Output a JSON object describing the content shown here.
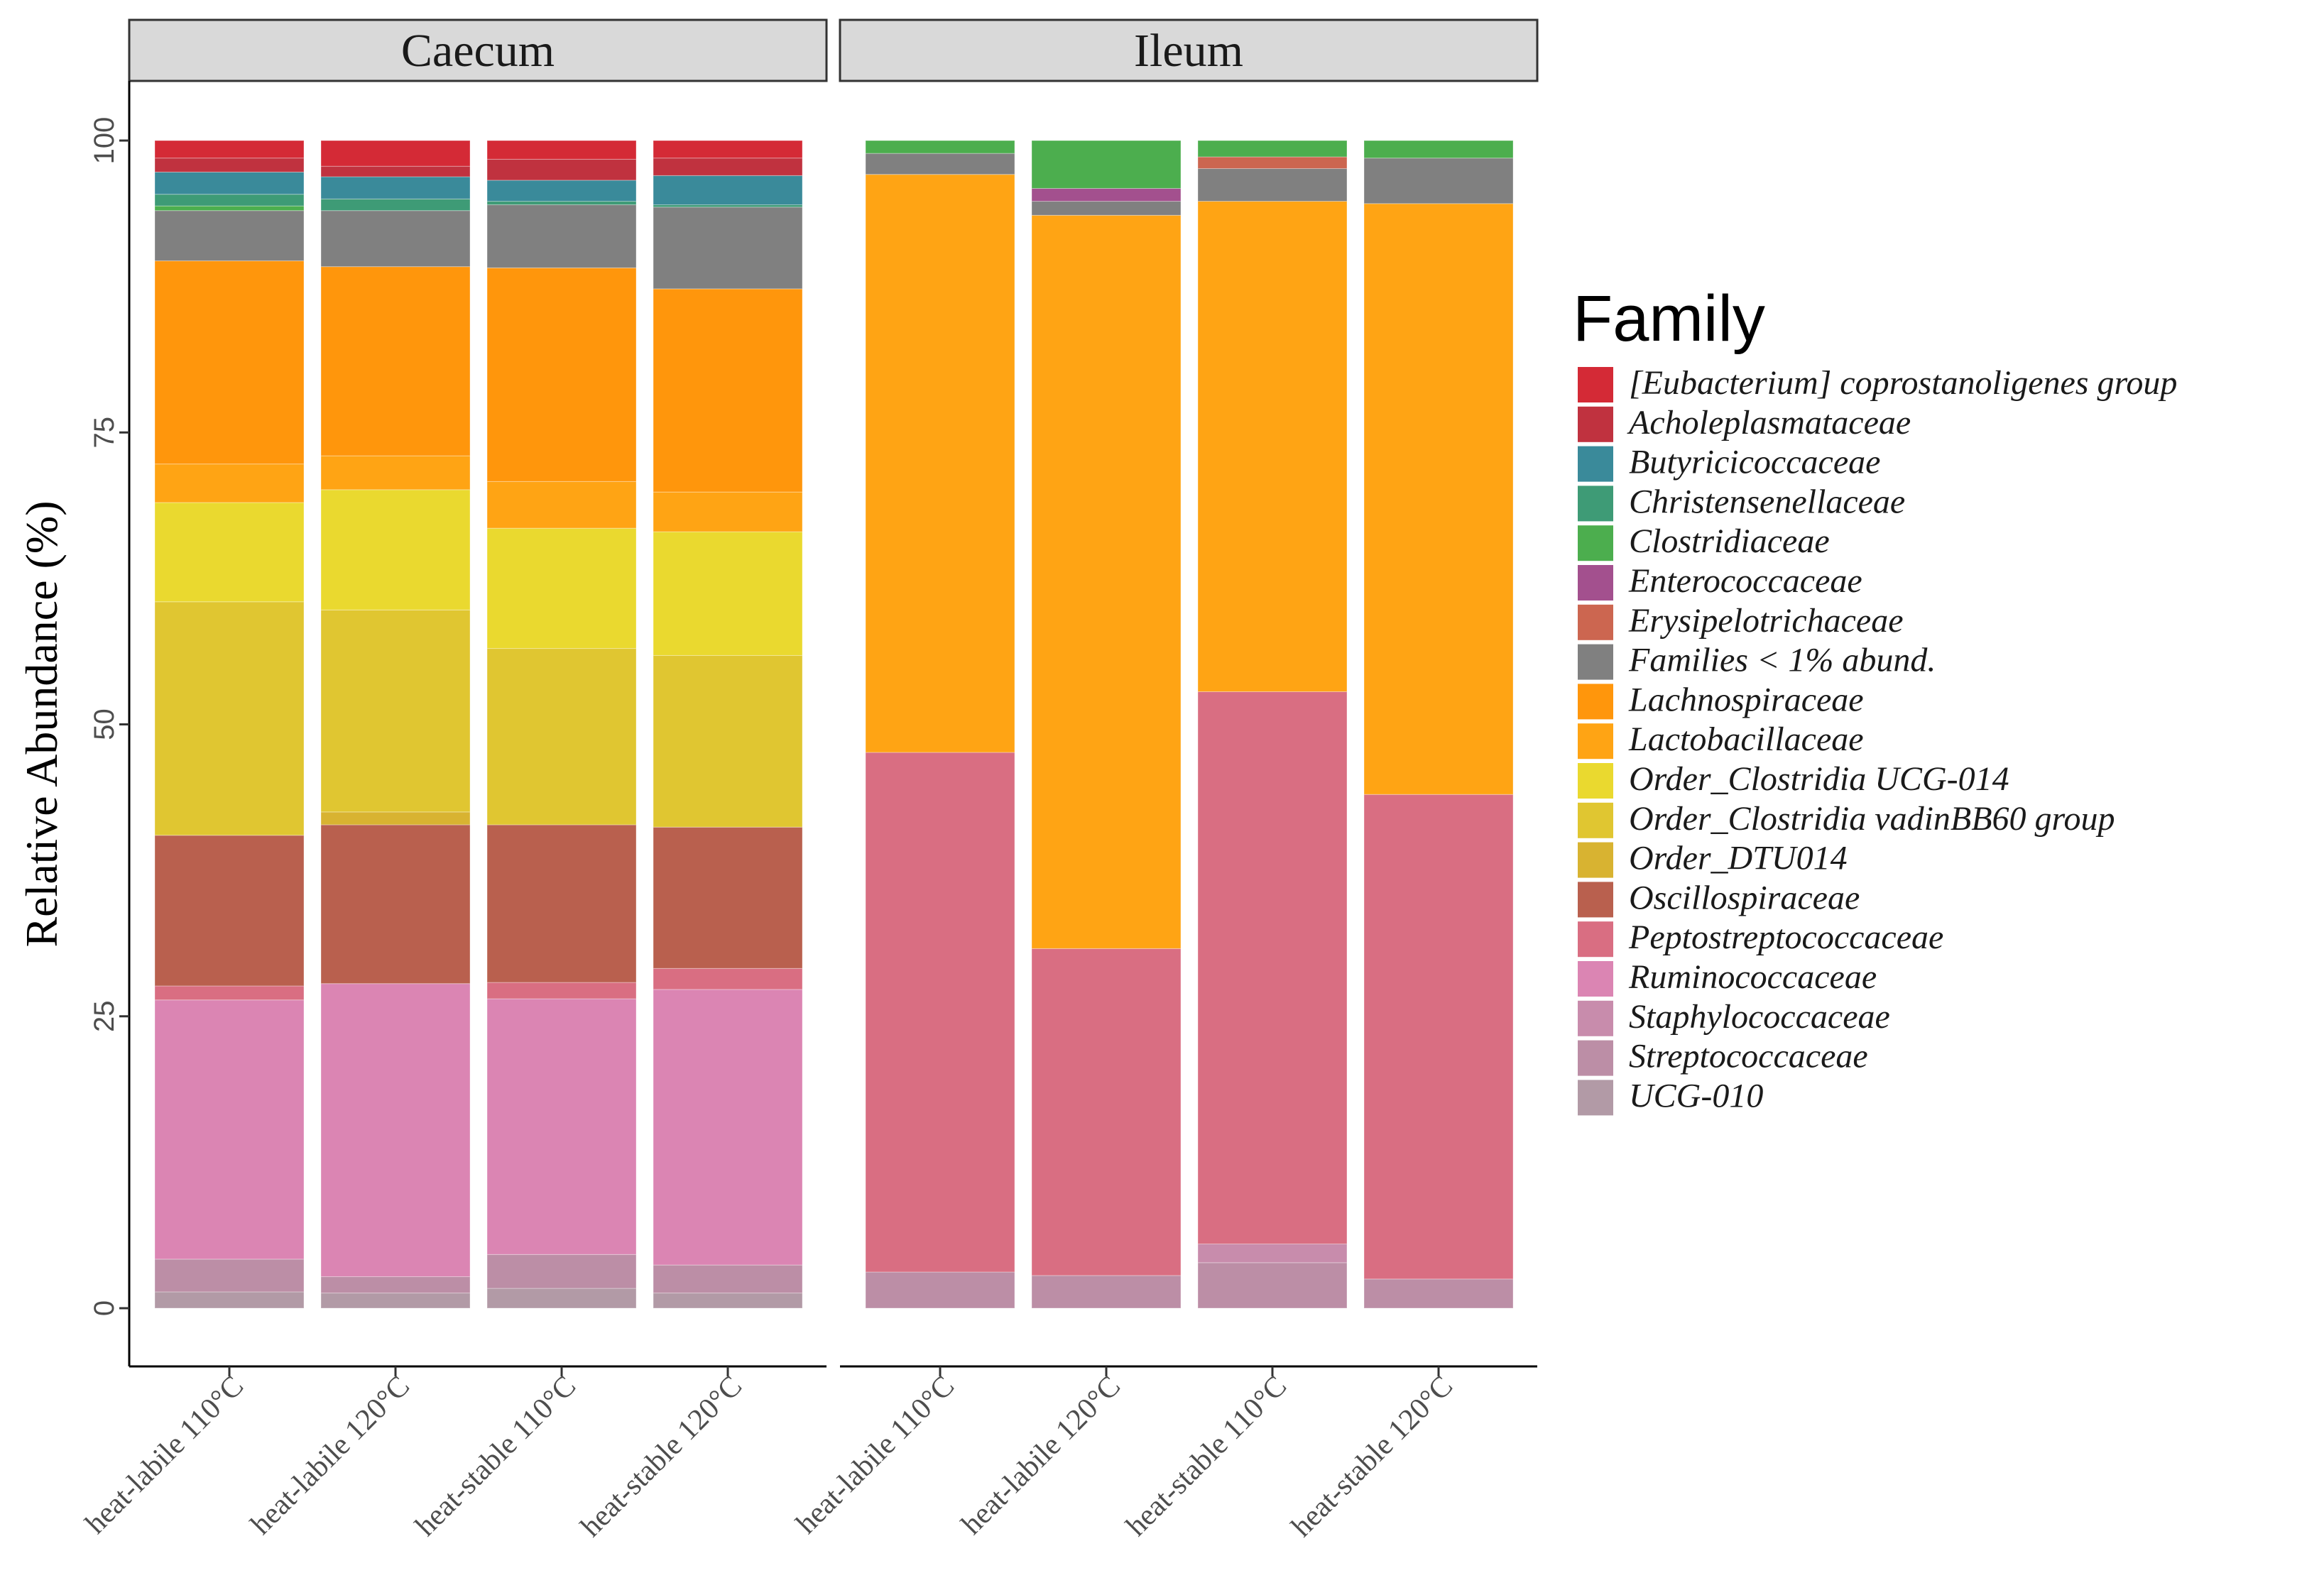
{
  "chart_data": {
    "type": "bar",
    "stacked": true,
    "ylabel": "Relative Abundance (%)",
    "ylim": [
      0,
      100
    ],
    "yticks": [
      0,
      25,
      50,
      75,
      100
    ],
    "legend_title": "Family",
    "legend_position": "right",
    "grid": false,
    "facets": [
      "Caecum",
      "Ileum"
    ],
    "categories": [
      "heat-labile 110°C",
      "heat-labile 120°C",
      "heat-stable 110°C",
      "heat-stable 120°C"
    ],
    "families": [
      {
        "name": "[Eubacterium] coprostanoligenes group",
        "color": "#D42A36"
      },
      {
        "name": "Acholeplasmataceae",
        "color": "#C0323F"
      },
      {
        "name": "Butyricicoccaceae",
        "color": "#3A8A9A"
      },
      {
        "name": "Christensenellaceae",
        "color": "#3E9B76"
      },
      {
        "name": "Clostridiaceae",
        "color": "#4CAE4E"
      },
      {
        "name": "Enterococcaceae",
        "color": "#A3508E"
      },
      {
        "name": "Erysipelotrichaceae",
        "color": "#CC6650"
      },
      {
        "name": "Families < 1% abund.",
        "color": "#808080"
      },
      {
        "name": "Lachnospiraceae",
        "color": "#FF960C"
      },
      {
        "name": "Lactobacillaceae",
        "color": "#FFA414"
      },
      {
        "name": "Order_Clostridia UCG-014",
        "color": "#EAD92F"
      },
      {
        "name": "Order_Clostridia vadinBB60 group",
        "color": "#E0C631"
      },
      {
        "name": "Order_DTU014",
        "color": "#D8B331"
      },
      {
        "name": "Oscillospiraceae",
        "color": "#B9604E"
      },
      {
        "name": "Peptostreptococcaceae",
        "color": "#D96E82"
      },
      {
        "name": "Ruminococcaceae",
        "color": "#DB85B3"
      },
      {
        "name": "Staphylococcaceae",
        "color": "#C88CAC"
      },
      {
        "name": "Streptococcaceae",
        "color": "#BC8EA6"
      },
      {
        "name": "UCG-010",
        "color": "#B29AA6"
      }
    ],
    "panels": [
      {
        "facet": "Caecum",
        "bars": [
          {
            "category": "heat-labile 110°C",
            "segments": [
              {
                "family": "UCG-010",
                "value": 1.4
              },
              {
                "family": "Streptococcaceae",
                "value": 2.8
              },
              {
                "family": "Ruminococcaceae",
                "value": 22.2
              },
              {
                "family": "Peptostreptococcaceae",
                "value": 1.2
              },
              {
                "family": "Oscillospiraceae",
                "value": 12.9
              },
              {
                "family": "Order_Clostridia vadinBB60 group",
                "value": 20.0
              },
              {
                "family": "Order_Clostridia UCG-014",
                "value": 8.5
              },
              {
                "family": "Lactobacillaceae",
                "value": 3.3
              },
              {
                "family": "Lachnospiraceae",
                "value": 17.4
              },
              {
                "family": "Families < 1% abund.",
                "value": 4.3
              },
              {
                "family": "Clostridiaceae",
                "value": 0.4
              },
              {
                "family": "Christensenellaceae",
                "value": 1.0
              },
              {
                "family": "Butyricicoccaceae",
                "value": 1.9
              },
              {
                "family": "Acholeplasmataceae",
                "value": 1.2
              },
              {
                "family": "[Eubacterium] coprostanoligenes group",
                "value": 1.5
              }
            ]
          },
          {
            "category": "heat-labile 120°C",
            "segments": [
              {
                "family": "UCG-010",
                "value": 1.3
              },
              {
                "family": "Streptococcaceae",
                "value": 1.4
              },
              {
                "family": "Ruminococcaceae",
                "value": 25.1
              },
              {
                "family": "Oscillospiraceae",
                "value": 13.6
              },
              {
                "family": "Order_DTU014",
                "value": 1.1
              },
              {
                "family": "Order_Clostridia vadinBB60 group",
                "value": 17.3
              },
              {
                "family": "Order_Clostridia UCG-014",
                "value": 10.3
              },
              {
                "family": "Lactobacillaceae",
                "value": 2.9
              },
              {
                "family": "Lachnospiraceae",
                "value": 16.2
              },
              {
                "family": "Families < 1% abund.",
                "value": 4.8
              },
              {
                "family": "Christensenellaceae",
                "value": 1.0
              },
              {
                "family": "Butyricicoccaceae",
                "value": 1.9
              },
              {
                "family": "Acholeplasmataceae",
                "value": 0.9
              },
              {
                "family": "[Eubacterium] coprostanoligenes group",
                "value": 2.2
              }
            ]
          },
          {
            "category": "heat-stable 110°C",
            "segments": [
              {
                "family": "UCG-010",
                "value": 1.7
              },
              {
                "family": "Streptococcaceae",
                "value": 2.9
              },
              {
                "family": "Ruminococcaceae",
                "value": 21.9
              },
              {
                "family": "Peptostreptococcaceae",
                "value": 1.4
              },
              {
                "family": "Oscillospiraceae",
                "value": 13.5
              },
              {
                "family": "Order_Clostridia vadinBB60 group",
                "value": 15.1
              },
              {
                "family": "Order_Clostridia UCG-014",
                "value": 10.3
              },
              {
                "family": "Lactobacillaceae",
                "value": 4.0
              },
              {
                "family": "Lachnospiraceae",
                "value": 18.3
              },
              {
                "family": "Families < 1% abund.",
                "value": 5.4
              },
              {
                "family": "Christensenellaceae",
                "value": 0.3
              },
              {
                "family": "Butyricicoccaceae",
                "value": 1.8
              },
              {
                "family": "Acholeplasmataceae",
                "value": 1.8
              },
              {
                "family": "[Eubacterium] coprostanoligenes group",
                "value": 1.6
              }
            ]
          },
          {
            "category": "heat-stable 120°C",
            "segments": [
              {
                "family": "UCG-010",
                "value": 1.3
              },
              {
                "family": "Streptococcaceae",
                "value": 2.4
              },
              {
                "family": "Ruminococcaceae",
                "value": 23.6
              },
              {
                "family": "Peptostreptococcaceae",
                "value": 1.8
              },
              {
                "family": "Oscillospiraceae",
                "value": 12.1
              },
              {
                "family": "Order_Clostridia vadinBB60 group",
                "value": 14.7
              },
              {
                "family": "Order_Clostridia UCG-014",
                "value": 10.6
              },
              {
                "family": "Lactobacillaceae",
                "value": 3.4
              },
              {
                "family": "Lachnospiraceae",
                "value": 17.4
              },
              {
                "family": "Families < 1% abund.",
                "value": 7.0
              },
              {
                "family": "Christensenellaceae",
                "value": 0.2
              },
              {
                "family": "Butyricicoccaceae",
                "value": 2.5
              },
              {
                "family": "Acholeplasmataceae",
                "value": 1.5
              },
              {
                "family": "[Eubacterium] coprostanoligenes group",
                "value": 1.5
              }
            ]
          }
        ]
      },
      {
        "facet": "Ileum",
        "bars": [
          {
            "category": "heat-labile 110°C",
            "segments": [
              {
                "family": "Streptococcaceae",
                "value": 3.1
              },
              {
                "family": "Peptostreptococcaceae",
                "value": 44.5
              },
              {
                "family": "Lactobacillaceae",
                "value": 49.5
              },
              {
                "family": "Families < 1% abund.",
                "value": 1.8
              },
              {
                "family": "Clostridiaceae",
                "value": 1.1
              }
            ]
          },
          {
            "category": "heat-labile 120°C",
            "segments": [
              {
                "family": "Streptococcaceae",
                "value": 2.8
              },
              {
                "family": "Peptostreptococcaceae",
                "value": 28.0
              },
              {
                "family": "Lactobacillaceae",
                "value": 62.8
              },
              {
                "family": "Families < 1% abund.",
                "value": 1.2
              },
              {
                "family": "Enterococcaceae",
                "value": 1.1
              },
              {
                "family": "Clostridiaceae",
                "value": 4.1
              }
            ]
          },
          {
            "category": "heat-stable 110°C",
            "segments": [
              {
                "family": "Streptococcaceae",
                "value": 3.9
              },
              {
                "family": "Staphylococcaceae",
                "value": 1.6
              },
              {
                "family": "Peptostreptococcaceae",
                "value": 47.3
              },
              {
                "family": "Lactobacillaceae",
                "value": 42.0
              },
              {
                "family": "Families < 1% abund.",
                "value": 2.8
              },
              {
                "family": "Erysipelotrichaceae",
                "value": 1.0
              },
              {
                "family": "Clostridiaceae",
                "value": 1.4
              }
            ]
          },
          {
            "category": "heat-stable 120°C",
            "segments": [
              {
                "family": "Streptococcaceae",
                "value": 2.5
              },
              {
                "family": "Peptostreptococcaceae",
                "value": 41.5
              },
              {
                "family": "Lactobacillaceae",
                "value": 50.6
              },
              {
                "family": "Families < 1% abund.",
                "value": 3.9
              },
              {
                "family": "Clostridiaceae",
                "value": 1.5
              }
            ]
          }
        ]
      }
    ]
  }
}
